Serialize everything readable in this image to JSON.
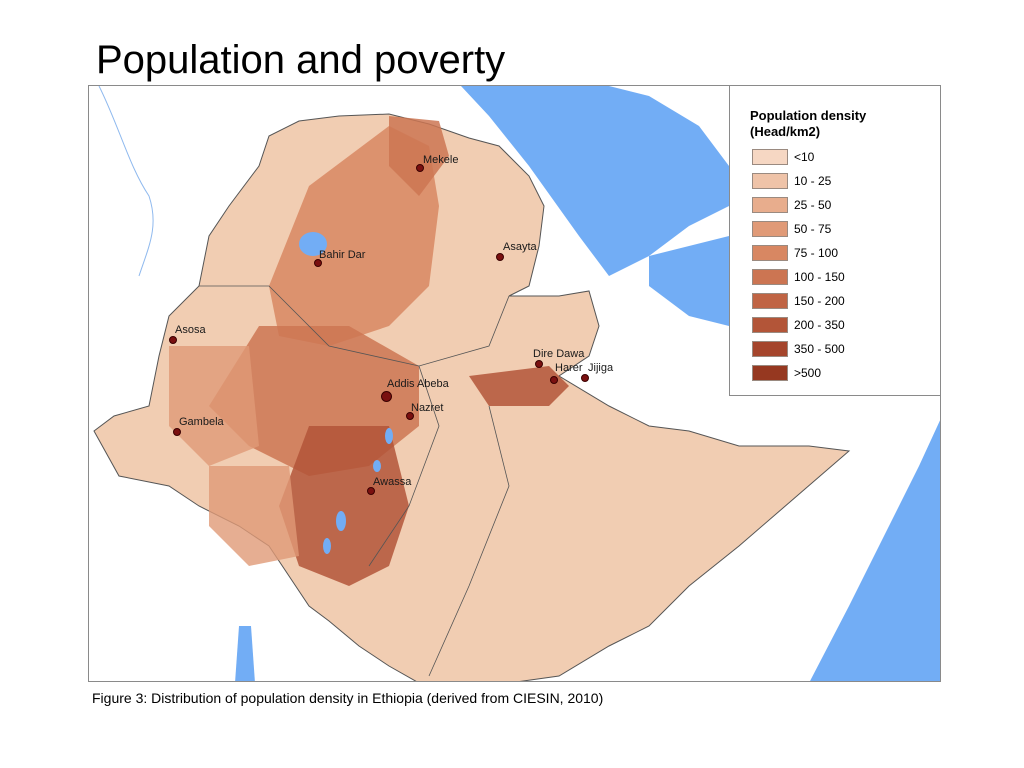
{
  "title": "Population and poverty",
  "caption": "Figure  3: Distribution of population density in Ethiopia (derived from CIESIN, 2010)",
  "legend": {
    "title_line1": "Population density",
    "title_line2": "(Head/km2)",
    "items": [
      {
        "label": "<10",
        "color": "#f6d7c3"
      },
      {
        "label": "10 - 25",
        "color": "#efc3a8"
      },
      {
        "label": "25 - 50",
        "color": "#e8ad8d"
      },
      {
        "label": "50 - 75",
        "color": "#e09a77"
      },
      {
        "label": "75 - 100",
        "color": "#d88762"
      },
      {
        "label": "100 - 150",
        "color": "#cc7552"
      },
      {
        "label": "150 - 200",
        "color": "#c06444"
      },
      {
        "label": "200 - 350",
        "color": "#b35538"
      },
      {
        "label": "350 - 500",
        "color": "#a5452c"
      },
      {
        "label": ">500",
        "color": "#963820"
      }
    ]
  },
  "cities": [
    {
      "name": "Mekele"
    },
    {
      "name": "Bahir Dar"
    },
    {
      "name": "Asayta"
    },
    {
      "name": "Asosa"
    },
    {
      "name": "Dire Dawa"
    },
    {
      "name": "Harer"
    },
    {
      "name": "Jijiga"
    },
    {
      "name": "Addis Abeba"
    },
    {
      "name": "Nazret"
    },
    {
      "name": "Gambela"
    },
    {
      "name": "Awassa"
    }
  ],
  "colors": {
    "water": "#72adf5",
    "land_outside": "#ffffff",
    "country_base": "#f1cdb2",
    "border": "#555555"
  }
}
